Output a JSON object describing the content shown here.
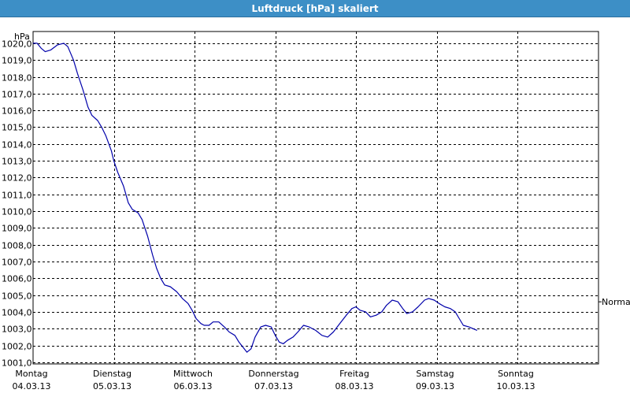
{
  "window": {
    "title": "Luftdruck [hPa] skaliert"
  },
  "colors": {
    "title_bar": "#3d8fc6",
    "line": "#0000aa",
    "grid": "#000000"
  },
  "chart_data": {
    "type": "line",
    "title": "Luftdruck [hPa] skaliert",
    "ylabel": "hPa",
    "xlabel": "",
    "ylim": [
      1000.9,
      1020.7
    ],
    "y_ticks": [
      "1001,0",
      "1002,0",
      "1003,0",
      "1004,0",
      "1005,0",
      "1006,0",
      "1007,0",
      "1008,0",
      "1009,0",
      "1010,0",
      "1011,0",
      "1012,0",
      "1013,0",
      "1014,0",
      "1015,0",
      "1016,0",
      "1017,0",
      "1018,0",
      "1019,0",
      "1020,0"
    ],
    "x_days": [
      {
        "day": "Montag",
        "date": "04.03.13"
      },
      {
        "day": "Dienstag",
        "date": "05.03.13"
      },
      {
        "day": "Mittwoch",
        "date": "06.03.13"
      },
      {
        "day": "Donnerstag",
        "date": "07.03.13"
      },
      {
        "day": "Freitag",
        "date": "08.03.13"
      },
      {
        "day": "Samstag",
        "date": "09.03.13"
      },
      {
        "day": "Sonntag",
        "date": "10.03.13"
      }
    ],
    "xlim_days": [
      0,
      7
    ],
    "grid": true,
    "reference_label": "Normal",
    "reference_value": 1004.6,
    "series": [
      {
        "values": [
          [
            0.0,
            1020.0
          ],
          [
            0.05,
            1020.0
          ],
          [
            0.1,
            1019.7
          ],
          [
            0.15,
            1019.5
          ],
          [
            0.22,
            1019.6
          ],
          [
            0.3,
            1019.9
          ],
          [
            0.38,
            1020.0
          ],
          [
            0.43,
            1019.8
          ],
          [
            0.5,
            1019.0
          ],
          [
            0.55,
            1018.2
          ],
          [
            0.62,
            1017.2
          ],
          [
            0.68,
            1016.2
          ],
          [
            0.73,
            1015.7
          ],
          [
            0.8,
            1015.4
          ],
          [
            0.85,
            1015.0
          ],
          [
            0.9,
            1014.5
          ],
          [
            0.97,
            1013.6
          ],
          [
            1.0,
            1013.0
          ],
          [
            1.05,
            1012.3
          ],
          [
            1.12,
            1011.5
          ],
          [
            1.18,
            1010.5
          ],
          [
            1.23,
            1010.1
          ],
          [
            1.3,
            1009.9
          ],
          [
            1.35,
            1009.5
          ],
          [
            1.42,
            1008.5
          ],
          [
            1.48,
            1007.4
          ],
          [
            1.53,
            1006.6
          ],
          [
            1.58,
            1006.0
          ],
          [
            1.63,
            1005.6
          ],
          [
            1.7,
            1005.5
          ],
          [
            1.78,
            1005.2
          ],
          [
            1.85,
            1004.8
          ],
          [
            1.92,
            1004.5
          ],
          [
            1.97,
            1004.1
          ],
          [
            2.02,
            1003.6
          ],
          [
            2.08,
            1003.3
          ],
          [
            2.12,
            1003.2
          ],
          [
            2.18,
            1003.2
          ],
          [
            2.23,
            1003.4
          ],
          [
            2.3,
            1003.4
          ],
          [
            2.37,
            1003.1
          ],
          [
            2.43,
            1002.8
          ],
          [
            2.5,
            1002.6
          ],
          [
            2.55,
            1002.2
          ],
          [
            2.6,
            1001.9
          ],
          [
            2.65,
            1001.6
          ],
          [
            2.7,
            1001.8
          ],
          [
            2.75,
            1002.5
          ],
          [
            2.82,
            1003.1
          ],
          [
            2.88,
            1003.2
          ],
          [
            2.95,
            1003.1
          ],
          [
            3.0,
            1002.6
          ],
          [
            3.05,
            1002.2
          ],
          [
            3.1,
            1002.1
          ],
          [
            3.15,
            1002.3
          ],
          [
            3.22,
            1002.5
          ],
          [
            3.28,
            1002.8
          ],
          [
            3.35,
            1003.2
          ],
          [
            3.42,
            1003.1
          ],
          [
            3.5,
            1002.9
          ],
          [
            3.58,
            1002.6
          ],
          [
            3.65,
            1002.5
          ],
          [
            3.72,
            1002.8
          ],
          [
            3.8,
            1003.3
          ],
          [
            3.88,
            1003.8
          ],
          [
            3.95,
            1004.2
          ],
          [
            4.0,
            1004.3
          ],
          [
            4.05,
            1004.1
          ],
          [
            4.12,
            1004.0
          ],
          [
            4.18,
            1003.7
          ],
          [
            4.25,
            1003.8
          ],
          [
            4.32,
            1004.0
          ],
          [
            4.38,
            1004.4
          ],
          [
            4.45,
            1004.7
          ],
          [
            4.52,
            1004.6
          ],
          [
            4.58,
            1004.2
          ],
          [
            4.63,
            1003.9
          ],
          [
            4.7,
            1004.0
          ],
          [
            4.77,
            1004.3
          ],
          [
            4.85,
            1004.7
          ],
          [
            4.9,
            1004.8
          ],
          [
            4.97,
            1004.7
          ],
          [
            5.03,
            1004.5
          ],
          [
            5.1,
            1004.3
          ],
          [
            5.17,
            1004.2
          ],
          [
            5.23,
            1004.0
          ],
          [
            5.28,
            1003.6
          ],
          [
            5.33,
            1003.2
          ],
          [
            5.4,
            1003.1
          ],
          [
            5.45,
            1003.0
          ],
          [
            5.5,
            1002.9
          ]
        ]
      }
    ]
  }
}
